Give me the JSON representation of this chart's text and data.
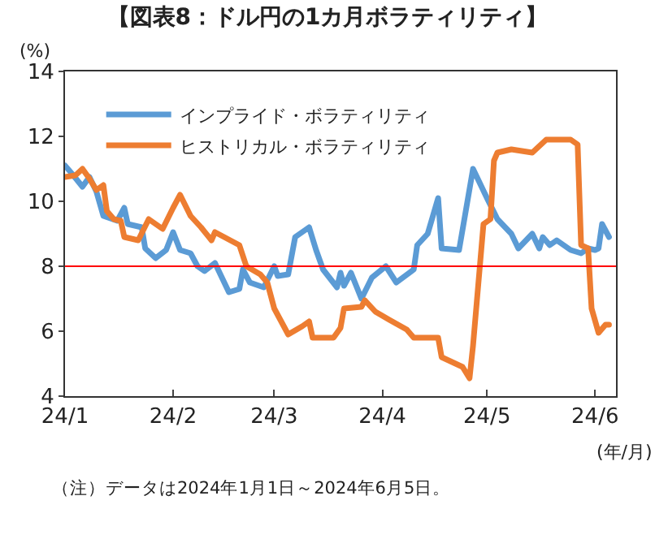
{
  "chart_data": {
    "type": "line",
    "title": "【図表8：ドル円の1カ月ボラティリティ】",
    "ylabel": "(%)",
    "xlabel": "(年/月)",
    "xlim": [
      "2024-01-01",
      "2024-06-07"
    ],
    "xticks": [
      {
        "value": "2024-01-01",
        "label": "24/1"
      },
      {
        "value": "2024-02-01",
        "label": "24/2"
      },
      {
        "value": "2024-03-01",
        "label": "24/3"
      },
      {
        "value": "2024-04-01",
        "label": "24/4"
      },
      {
        "value": "2024-05-01",
        "label": "24/5"
      },
      {
        "value": "2024-06-01",
        "label": "24/6"
      }
    ],
    "ylim": [
      4,
      14
    ],
    "yticks": [
      4,
      6,
      8,
      10,
      12,
      14
    ],
    "legend": "top left",
    "marker": "none",
    "line_style": "solid",
    "ref_lines": [
      {
        "axis": "y",
        "value": 8,
        "color": "#ff0000"
      }
    ],
    "annotations": [
      "（注）データは2024年1月1日～2024年6月5日。"
    ],
    "series": [
      {
        "name": "インプライド・ボラティリティ",
        "color": "#5b9bd5",
        "x": [
          "2024-01-01",
          "2024-01-03",
          "2024-01-06",
          "2024-01-08",
          "2024-01-10",
          "2024-01-12",
          "2024-01-16",
          "2024-01-18",
          "2024-01-19",
          "2024-01-23",
          "2024-01-24",
          "2024-01-27",
          "2024-01-30",
          "2024-02-01",
          "2024-02-03",
          "2024-02-06",
          "2024-02-08",
          "2024-02-10",
          "2024-02-13",
          "2024-02-17",
          "2024-02-20",
          "2024-02-21",
          "2024-02-23",
          "2024-02-27",
          "2024-03-01",
          "2024-03-02",
          "2024-03-05",
          "2024-03-07",
          "2024-03-11",
          "2024-03-13",
          "2024-03-15",
          "2024-03-19",
          "2024-03-20",
          "2024-03-21",
          "2024-03-23",
          "2024-03-26",
          "2024-03-29",
          "2024-04-02",
          "2024-04-05",
          "2024-04-10",
          "2024-04-11",
          "2024-04-14",
          "2024-04-17",
          "2024-04-18",
          "2024-04-23",
          "2024-04-27",
          "2024-05-01",
          "2024-05-04",
          "2024-05-08",
          "2024-05-10",
          "2024-05-14",
          "2024-05-16",
          "2024-05-17",
          "2024-05-19",
          "2024-05-21",
          "2024-05-25",
          "2024-05-28",
          "2024-05-30",
          "2024-06-01",
          "2024-06-02",
          "2024-06-03",
          "2024-06-05"
        ],
        "values": [
          11.1,
          10.85,
          10.45,
          10.75,
          10.3,
          9.55,
          9.4,
          9.8,
          9.3,
          9.2,
          8.55,
          8.25,
          8.5,
          9.05,
          8.5,
          8.4,
          8.0,
          7.85,
          8.1,
          7.2,
          7.3,
          7.9,
          7.5,
          7.35,
          8.0,
          7.7,
          7.75,
          8.9,
          9.2,
          8.5,
          7.9,
          7.35,
          7.8,
          7.4,
          7.8,
          7.0,
          7.65,
          8.0,
          7.5,
          7.9,
          8.65,
          9.0,
          10.1,
          8.55,
          8.5,
          11.0,
          10.1,
          9.45,
          9.0,
          8.55,
          9.0,
          8.55,
          8.9,
          8.65,
          8.8,
          8.5,
          8.4,
          8.55,
          8.5,
          8.55,
          9.3,
          8.9
        ]
      },
      {
        "name": "ヒストリカル・ボラティリティ",
        "color": "#ed7d31",
        "x": [
          "2024-01-01",
          "2024-01-04",
          "2024-01-06",
          "2024-01-08",
          "2024-01-10",
          "2024-01-12",
          "2024-01-13",
          "2024-01-15",
          "2024-01-17",
          "2024-01-18",
          "2024-01-22",
          "2024-01-25",
          "2024-01-29",
          "2024-02-01",
          "2024-02-03",
          "2024-02-06",
          "2024-02-09",
          "2024-02-12",
          "2024-02-13",
          "2024-02-20",
          "2024-02-22",
          "2024-02-26",
          "2024-02-28",
          "2024-03-01",
          "2024-03-05",
          "2024-03-09",
          "2024-03-11",
          "2024-03-12",
          "2024-03-18",
          "2024-03-20",
          "2024-03-21",
          "2024-03-26",
          "2024-03-27",
          "2024-03-30",
          "2024-04-03",
          "2024-04-08",
          "2024-04-10",
          "2024-04-17",
          "2024-04-18",
          "2024-04-21",
          "2024-04-24",
          "2024-04-26",
          "2024-04-27",
          "2024-04-30",
          "2024-05-02",
          "2024-05-03",
          "2024-05-04",
          "2024-05-08",
          "2024-05-14",
          "2024-05-18",
          "2024-05-25",
          "2024-05-27",
          "2024-05-28",
          "2024-05-30",
          "2024-05-31",
          "2024-06-02",
          "2024-06-04",
          "2024-06-05"
        ],
        "values": [
          10.75,
          10.8,
          11.0,
          10.7,
          10.35,
          10.5,
          9.7,
          9.45,
          9.4,
          8.9,
          8.8,
          9.45,
          9.15,
          9.8,
          10.2,
          9.55,
          9.2,
          8.8,
          9.05,
          8.65,
          8.0,
          7.75,
          7.5,
          6.7,
          5.9,
          6.15,
          6.3,
          5.8,
          5.8,
          6.1,
          6.7,
          6.75,
          6.95,
          6.6,
          6.35,
          6.05,
          5.8,
          5.8,
          5.2,
          5.05,
          4.9,
          4.55,
          5.55,
          9.3,
          9.45,
          11.25,
          11.5,
          11.6,
          11.5,
          11.9,
          11.9,
          11.75,
          8.65,
          8.55,
          6.7,
          5.95,
          6.2,
          6.2
        ]
      }
    ]
  }
}
